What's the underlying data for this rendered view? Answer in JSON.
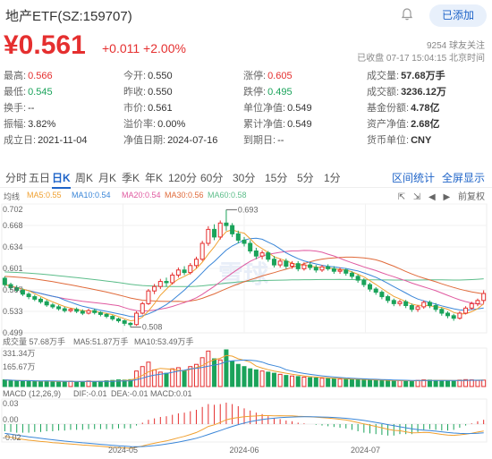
{
  "header": {
    "title": "地产ETF(SZ:159707)",
    "follow_button": "已添加",
    "followers": "9254 球友关注",
    "status": "已收盘 07-17 15:04:15 北京时间"
  },
  "quote": {
    "price": "¥0.561",
    "change": "+0.011 +2.00%"
  },
  "stats": [
    [
      [
        "最高:",
        "0.566",
        "red"
      ],
      [
        "今开:",
        "0.550",
        ""
      ],
      [
        "涨停:",
        "0.605",
        "red"
      ],
      [
        "成交量:",
        "57.68万手",
        "bold"
      ]
    ],
    [
      [
        "最低:",
        "0.545",
        "green"
      ],
      [
        "昨收:",
        "0.550",
        ""
      ],
      [
        "跌停:",
        "0.495",
        "green"
      ],
      [
        "成交额:",
        "3236.12万",
        "bold"
      ]
    ],
    [
      [
        "换手:",
        "--",
        ""
      ],
      [
        "市价:",
        "0.561",
        ""
      ],
      [
        "单位净值:",
        "0.549",
        ""
      ],
      [
        "基金份额:",
        "4.78亿",
        "bold"
      ]
    ],
    [
      [
        "振幅:",
        "3.82%",
        ""
      ],
      [
        "溢价率:",
        "0.00%",
        ""
      ],
      [
        "累计净值:",
        "0.549",
        ""
      ],
      [
        "资产净值:",
        "2.68亿",
        "bold"
      ]
    ],
    [
      [
        "成立日:",
        "2021-11-04",
        ""
      ],
      [
        "净值日期:",
        "2024-07-16",
        ""
      ],
      [
        "到期日:",
        "--",
        ""
      ],
      [
        "货币单位:",
        "CNY",
        "bold"
      ]
    ]
  ],
  "tabs": [
    "分时",
    "五日",
    "日K",
    "周K",
    "月K",
    "季K",
    "年K",
    "120分",
    "60分",
    "30分",
    "15分",
    "5分",
    "1分"
  ],
  "active_tab": "日K",
  "tab_links": [
    "区间统计",
    "全屏显示"
  ],
  "chart_legend": {
    "label": "均线",
    "ma5": "MA5:0.55",
    "ma10": "MA10:0.54",
    "ma20": "MA20:0.54",
    "ma30": "MA30:0.56",
    "ma60": "MA60:0.58",
    "adjust": "前复权"
  },
  "volume_legend": {
    "label": "成交量 57.68万手",
    "ma5": "MA5:51.87万手",
    "ma10": "MA10:53.49万手"
  },
  "macd_legend": {
    "label": "MACD (12,26,9)",
    "dif": "DIF:-0.01",
    "dea": "DEA:-0.01",
    "macd": "MACD:0.01"
  },
  "colors": {
    "up": "#e52f2f",
    "down": "#1aa35a",
    "ma5": "#f0a030",
    "ma10": "#3a86d8",
    "ma20": "#e05aa0",
    "ma30": "#e06a3a",
    "ma60": "#5cbd8a",
    "accent": "#1f64c8"
  },
  "chart_data": {
    "type": "candlestick",
    "price_axis_ticks": [
      "0.702",
      "0.668",
      "0.634",
      "0.601",
      "0.567",
      "0.533",
      "0.499"
    ],
    "volume_axis_ticks": [
      "331.34万",
      "165.67万"
    ],
    "macd_axis_ticks": [
      "0.03",
      "0.00",
      "-0.02"
    ],
    "x_ticks": [
      "2024-05",
      "2024-06",
      "2024-07"
    ],
    "annotations": {
      "high": "0.693",
      "low": "0.508"
    },
    "ylim": [
      0.499,
      0.702
    ],
    "candles": [
      [
        0.585,
        0.575,
        0.588,
        0.572
      ],
      [
        0.575,
        0.57,
        0.578,
        0.566
      ],
      [
        0.57,
        0.566,
        0.574,
        0.563
      ],
      [
        0.566,
        0.56,
        0.569,
        0.557
      ],
      [
        0.56,
        0.556,
        0.563,
        0.552
      ],
      [
        0.556,
        0.552,
        0.559,
        0.549
      ],
      [
        0.552,
        0.548,
        0.555,
        0.545
      ],
      [
        0.548,
        0.543,
        0.551,
        0.54
      ],
      [
        0.543,
        0.54,
        0.546,
        0.537
      ],
      [
        0.54,
        0.537,
        0.543,
        0.534
      ],
      [
        0.537,
        0.534,
        0.54,
        0.531
      ],
      [
        0.534,
        0.536,
        0.538,
        0.531
      ],
      [
        0.536,
        0.533,
        0.539,
        0.53
      ],
      [
        0.533,
        0.53,
        0.536,
        0.527
      ],
      [
        0.53,
        0.534,
        0.537,
        0.528
      ],
      [
        0.534,
        0.531,
        0.537,
        0.528
      ],
      [
        0.531,
        0.528,
        0.533,
        0.525
      ],
      [
        0.528,
        0.525,
        0.53,
        0.522
      ],
      [
        0.525,
        0.521,
        0.527,
        0.518
      ],
      [
        0.521,
        0.518,
        0.523,
        0.515
      ],
      [
        0.518,
        0.514,
        0.52,
        0.51
      ],
      [
        0.514,
        0.512,
        0.516,
        0.508
      ],
      [
        0.512,
        0.53,
        0.533,
        0.51
      ],
      [
        0.53,
        0.545,
        0.548,
        0.528
      ],
      [
        0.545,
        0.565,
        0.568,
        0.543
      ],
      [
        0.565,
        0.572,
        0.576,
        0.56
      ],
      [
        0.572,
        0.58,
        0.584,
        0.568
      ],
      [
        0.58,
        0.578,
        0.586,
        0.572
      ],
      [
        0.578,
        0.59,
        0.594,
        0.575
      ],
      [
        0.59,
        0.598,
        0.602,
        0.586
      ],
      [
        0.598,
        0.594,
        0.604,
        0.59
      ],
      [
        0.594,
        0.605,
        0.609,
        0.591
      ],
      [
        0.605,
        0.615,
        0.619,
        0.601
      ],
      [
        0.615,
        0.64,
        0.644,
        0.612
      ],
      [
        0.64,
        0.662,
        0.667,
        0.636
      ],
      [
        0.662,
        0.65,
        0.67,
        0.645
      ],
      [
        0.65,
        0.672,
        0.676,
        0.646
      ],
      [
        0.672,
        0.668,
        0.693,
        0.66
      ],
      [
        0.668,
        0.655,
        0.672,
        0.65
      ],
      [
        0.655,
        0.645,
        0.66,
        0.64
      ],
      [
        0.645,
        0.64,
        0.65,
        0.635
      ],
      [
        0.64,
        0.628,
        0.645,
        0.624
      ],
      [
        0.628,
        0.62,
        0.633,
        0.615
      ],
      [
        0.62,
        0.625,
        0.629,
        0.615
      ],
      [
        0.625,
        0.615,
        0.628,
        0.611
      ],
      [
        0.615,
        0.606,
        0.62,
        0.602
      ],
      [
        0.606,
        0.612,
        0.616,
        0.602
      ],
      [
        0.612,
        0.604,
        0.616,
        0.6
      ],
      [
        0.604,
        0.608,
        0.612,
        0.6
      ],
      [
        0.608,
        0.6,
        0.612,
        0.596
      ],
      [
        0.6,
        0.606,
        0.61,
        0.597
      ],
      [
        0.606,
        0.602,
        0.61,
        0.598
      ],
      [
        0.602,
        0.598,
        0.606,
        0.594
      ],
      [
        0.598,
        0.603,
        0.606,
        0.595
      ],
      [
        0.603,
        0.6,
        0.607,
        0.597
      ],
      [
        0.6,
        0.596,
        0.604,
        0.592
      ],
      [
        0.596,
        0.598,
        0.602,
        0.592
      ],
      [
        0.598,
        0.593,
        0.601,
        0.589
      ],
      [
        0.593,
        0.588,
        0.596,
        0.584
      ],
      [
        0.588,
        0.582,
        0.591,
        0.578
      ],
      [
        0.582,
        0.575,
        0.585,
        0.571
      ],
      [
        0.575,
        0.568,
        0.578,
        0.564
      ],
      [
        0.568,
        0.563,
        0.571,
        0.559
      ],
      [
        0.563,
        0.556,
        0.566,
        0.552
      ],
      [
        0.556,
        0.55,
        0.559,
        0.546
      ],
      [
        0.55,
        0.545,
        0.553,
        0.541
      ],
      [
        0.545,
        0.548,
        0.551,
        0.541
      ],
      [
        0.548,
        0.542,
        0.551,
        0.538
      ],
      [
        0.542,
        0.536,
        0.545,
        0.532
      ],
      [
        0.536,
        0.54,
        0.543,
        0.532
      ],
      [
        0.54,
        0.547,
        0.55,
        0.537
      ],
      [
        0.547,
        0.542,
        0.55,
        0.538
      ],
      [
        0.542,
        0.536,
        0.546,
        0.532
      ],
      [
        0.536,
        0.53,
        0.539,
        0.526
      ],
      [
        0.53,
        0.526,
        0.533,
        0.522
      ],
      [
        0.526,
        0.522,
        0.529,
        0.518
      ],
      [
        0.522,
        0.53,
        0.533,
        0.52
      ],
      [
        0.53,
        0.538,
        0.541,
        0.528
      ],
      [
        0.538,
        0.545,
        0.548,
        0.535
      ],
      [
        0.545,
        0.55,
        0.553,
        0.541
      ],
      [
        0.55,
        0.561,
        0.566,
        0.545
      ]
    ],
    "volumes": [
      60,
      55,
      50,
      48,
      52,
      45,
      47,
      50,
      44,
      42,
      46,
      48,
      43,
      45,
      50,
      44,
      47,
      52,
      55,
      60,
      58,
      62,
      140,
      180,
      220,
      150,
      130,
      120,
      160,
      170,
      140,
      180,
      200,
      260,
      320,
      250,
      240,
      331,
      230,
      200,
      180,
      160,
      150,
      140,
      130,
      120,
      110,
      100,
      95,
      90,
      85,
      80,
      78,
      75,
      72,
      70,
      68,
      66,
      64,
      62,
      60,
      58,
      56,
      54,
      52,
      50,
      55,
      52,
      50,
      55,
      60,
      58,
      56,
      54,
      52,
      50,
      58,
      62,
      60,
      55,
      57.68
    ],
    "macd_hist": [
      -0.01,
      -0.011,
      -0.012,
      -0.012,
      -0.012,
      -0.011,
      -0.011,
      -0.01,
      -0.01,
      -0.009,
      -0.009,
      -0.008,
      -0.008,
      -0.008,
      -0.007,
      -0.007,
      -0.007,
      -0.007,
      -0.007,
      -0.006,
      -0.006,
      -0.006,
      -0.002,
      0.002,
      0.006,
      0.008,
      0.01,
      0.011,
      0.013,
      0.015,
      0.016,
      0.018,
      0.02,
      0.024,
      0.028,
      0.027,
      0.028,
      0.03,
      0.028,
      0.025,
      0.022,
      0.019,
      0.016,
      0.014,
      0.011,
      0.008,
      0.007,
      0.005,
      0.004,
      0.002,
      0.001,
      0.0,
      -0.001,
      -0.002,
      -0.003,
      -0.004,
      -0.005,
      -0.006,
      -0.008,
      -0.01,
      -0.012,
      -0.013,
      -0.014,
      -0.015,
      -0.016,
      -0.016,
      -0.014,
      -0.014,
      -0.014,
      -0.011,
      -0.008,
      -0.007,
      -0.008,
      -0.009,
      -0.009,
      -0.008,
      -0.005,
      -0.002,
      0.001,
      0.004,
      0.006
    ]
  }
}
